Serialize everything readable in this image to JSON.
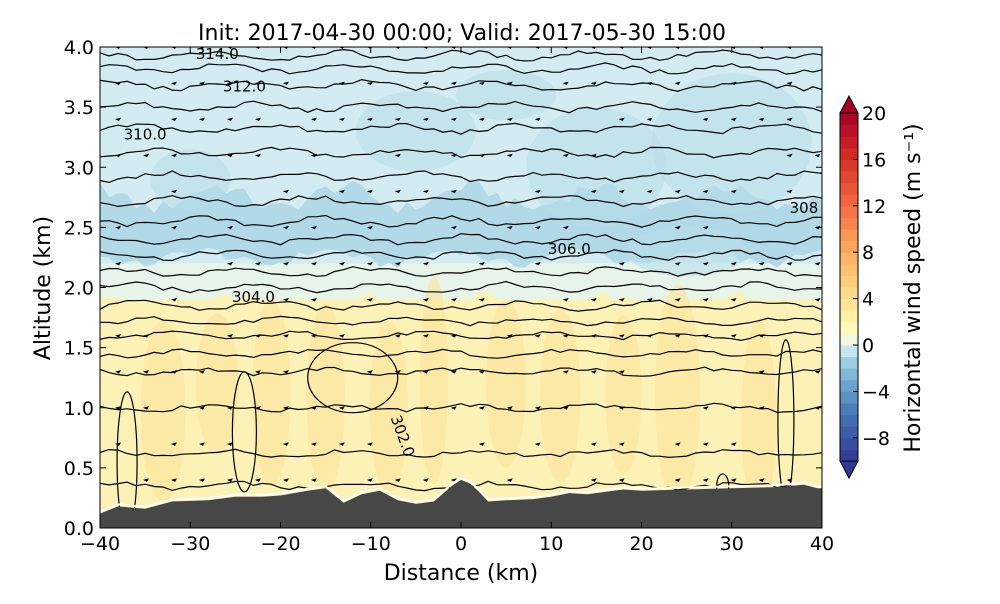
{
  "chart_data": {
    "type": "heatmap",
    "title": "Init: 2017-04-30 00:00; Valid: 2017-05-30 15:00",
    "xlabel": "Distance (km)",
    "ylabel": "Altitude (km)",
    "xlim": [
      -40,
      40
    ],
    "ylim": [
      0,
      4
    ],
    "xticks": [
      -40,
      -30,
      -20,
      -10,
      0,
      10,
      20,
      30,
      40
    ],
    "xtick_labels": [
      "−40",
      "−30",
      "−20",
      "−10",
      "0",
      "10",
      "20",
      "30",
      "40"
    ],
    "yticks": [
      0,
      0.5,
      1,
      1.5,
      2,
      2.5,
      3,
      3.5,
      4
    ],
    "ytick_labels": [
      "0.0",
      "0.5",
      "1.0",
      "1.5",
      "2.0",
      "2.5",
      "3.0",
      "3.5",
      "4.0"
    ],
    "colorbar": {
      "label": "Horizontal wind speed (m s⁻¹)",
      "range": [
        -10,
        20
      ],
      "ticks": [
        -8,
        -4,
        0,
        4,
        8,
        12,
        16,
        20
      ],
      "tick_labels": [
        "−8",
        "−4",
        "0",
        "4",
        "8",
        "12",
        "16",
        "20"
      ],
      "extend": "both",
      "colormap": "RdYlBu_r"
    },
    "field_layers": [
      {
        "name": "upper",
        "z_range": [
          2.2,
          4.0
        ],
        "wind_speed": -3.0,
        "color": "#d3ecf1"
      },
      {
        "name": "upper-core",
        "z_range": [
          2.2,
          2.9
        ],
        "wind_speed": -4.5,
        "color": "#a9d4e5"
      },
      {
        "name": "transition",
        "z_range": [
          1.9,
          2.2
        ],
        "wind_speed": -1.5,
        "color": "#e6f4ea"
      },
      {
        "name": "boundary-layer",
        "z_range": [
          0.3,
          1.9
        ],
        "wind_speed": 2.0,
        "color": "#fdf2b6"
      }
    ],
    "theta_contours": {
      "units": "K",
      "labels": [
        {
          "text": "314.0",
          "x": -27,
          "z": 3.9
        },
        {
          "text": "312.0",
          "x": -24,
          "z": 3.63
        },
        {
          "text": "310.0",
          "x": -35,
          "z": 3.23
        },
        {
          "text": "308",
          "x": 38,
          "z": 2.62
        },
        {
          "text": "306.0",
          "x": 12,
          "z": 2.28
        },
        {
          "text": "304.0",
          "x": -23,
          "z": 1.88
        },
        {
          "text": "302.0",
          "x": -7,
          "z": 0.75
        }
      ]
    },
    "terrain": {
      "x": [
        -40,
        -38,
        -35,
        -32,
        -28,
        -25,
        -22,
        -20,
        -17,
        -15,
        -13,
        -11,
        -9,
        -7,
        -5,
        -3,
        -1,
        0,
        1,
        2,
        3,
        5,
        8,
        10,
        12,
        14,
        16,
        18,
        20,
        25,
        30,
        35,
        38,
        40
      ],
      "z": [
        0.12,
        0.18,
        0.16,
        0.22,
        0.23,
        0.26,
        0.26,
        0.27,
        0.31,
        0.33,
        0.21,
        0.28,
        0.31,
        0.23,
        0.2,
        0.22,
        0.35,
        0.4,
        0.37,
        0.3,
        0.22,
        0.23,
        0.24,
        0.26,
        0.29,
        0.28,
        0.3,
        0.32,
        0.31,
        0.32,
        0.33,
        0.34,
        0.36,
        0.32
      ]
    }
  }
}
